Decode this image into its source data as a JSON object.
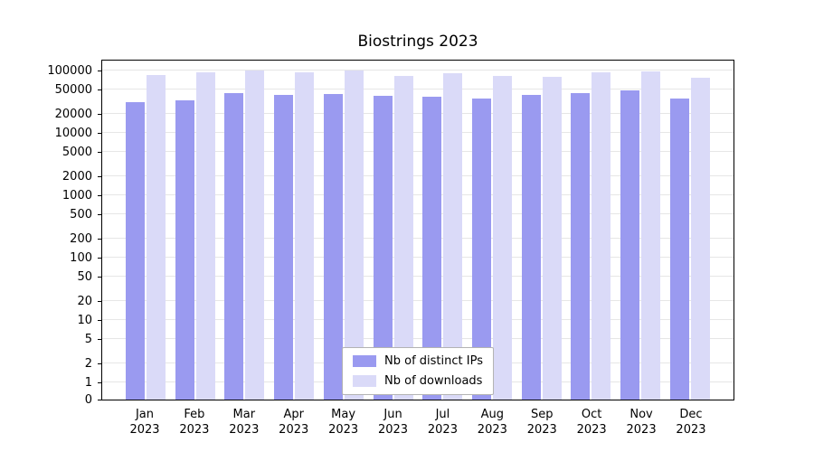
{
  "chart_data": {
    "type": "bar",
    "title": "Biostrings 2023",
    "categories": [
      "Jan\n2023",
      "Feb\n2023",
      "Mar\n2023",
      "Apr\n2023",
      "May\n2023",
      "Jun\n2023",
      "Jul\n2023",
      "Aug\n2023",
      "Sep\n2023",
      "Oct\n2023",
      "Nov\n2023",
      "Dec\n2023"
    ],
    "series": [
      {
        "name": "Nb of distinct IPs",
        "color": "#9a9af0",
        "values": [
          31000,
          33000,
          43000,
          41000,
          42000,
          39000,
          38000,
          36000,
          40000,
          43000,
          48000,
          36000
        ]
      },
      {
        "name": "Nb of downloads",
        "color": "#dadaf8",
        "values": [
          85000,
          93000,
          100000,
          92000,
          100000,
          82000,
          90000,
          82000,
          80000,
          95000,
          98000,
          77000
        ]
      }
    ],
    "yticks": [
      0,
      1,
      2,
      5,
      10,
      20,
      50,
      100,
      200,
      500,
      1000,
      2000,
      5000,
      10000,
      20000,
      50000,
      100000
    ],
    "yscale": "log",
    "ylim": [
      0,
      100000
    ],
    "grid": "horizontal",
    "legend_position": "lower center inside plot"
  }
}
